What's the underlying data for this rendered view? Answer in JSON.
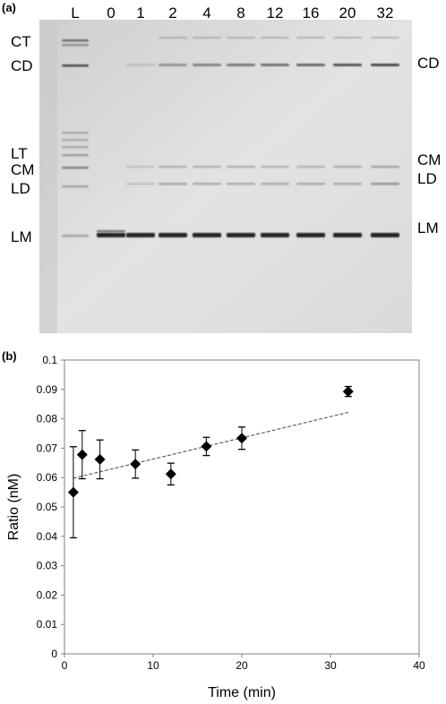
{
  "panel_a": {
    "label": "(a)",
    "lane_labels": [
      "L",
      "0",
      "1",
      "2",
      "4",
      "8",
      "12",
      "16",
      "20",
      "32"
    ],
    "left_band_labels": [
      "CT",
      "CD",
      "LT",
      "CM",
      "LD",
      "LM"
    ],
    "right_band_labels": [
      "CD",
      "CM",
      "LD",
      "LM"
    ]
  },
  "panel_b": {
    "label": "(b)"
  },
  "chart_data": {
    "type": "scatter",
    "xlabel": "Time (min)",
    "ylabel": "Ratio (nM)",
    "xlim": [
      0,
      40
    ],
    "ylim": [
      0,
      0.1
    ],
    "x_ticks": [
      "0",
      "10",
      "20",
      "30",
      "40"
    ],
    "y_ticks": [
      "0",
      "0.01",
      "0.02",
      "0.03",
      "0.04",
      "0.05",
      "0.06",
      "0.07",
      "0.08",
      "0.09",
      "0.1"
    ],
    "grid": false,
    "marker": "diamond",
    "series": [
      {
        "x": [
          1,
          2,
          4,
          8,
          12,
          16,
          20,
          32
        ],
        "y": [
          0.055,
          0.0678,
          0.0662,
          0.0646,
          0.0612,
          0.0706,
          0.0734,
          0.0893
        ],
        "error": [
          0.0155,
          0.0082,
          0.0066,
          0.0048,
          0.0037,
          0.0031,
          0.0038,
          0.0017
        ]
      }
    ],
    "trendline": {
      "x": [
        1,
        32
      ],
      "y": [
        0.0598,
        0.0822
      ],
      "style": "dashed"
    }
  }
}
